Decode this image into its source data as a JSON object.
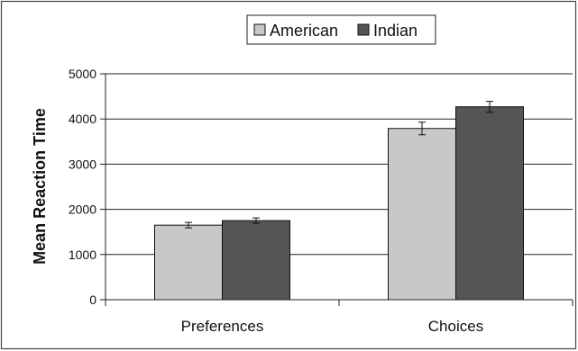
{
  "chart_data": {
    "type": "bar",
    "title": "",
    "xlabel": "",
    "ylabel": "Mean Reaction Time",
    "categories": [
      "Preferences",
      "Choices"
    ],
    "series": [
      {
        "name": "American",
        "color": "#c8c8c8",
        "values": [
          1650,
          3790
        ],
        "errors": [
          60,
          140
        ]
      },
      {
        "name": "Indian",
        "color": "#555555",
        "values": [
          1750,
          4270
        ],
        "errors": [
          60,
          120
        ]
      }
    ],
    "ylim": [
      0,
      5000
    ],
    "yticks": [
      0,
      1000,
      2000,
      3000,
      4000,
      5000
    ],
    "grid": true,
    "legend": "top-center"
  }
}
